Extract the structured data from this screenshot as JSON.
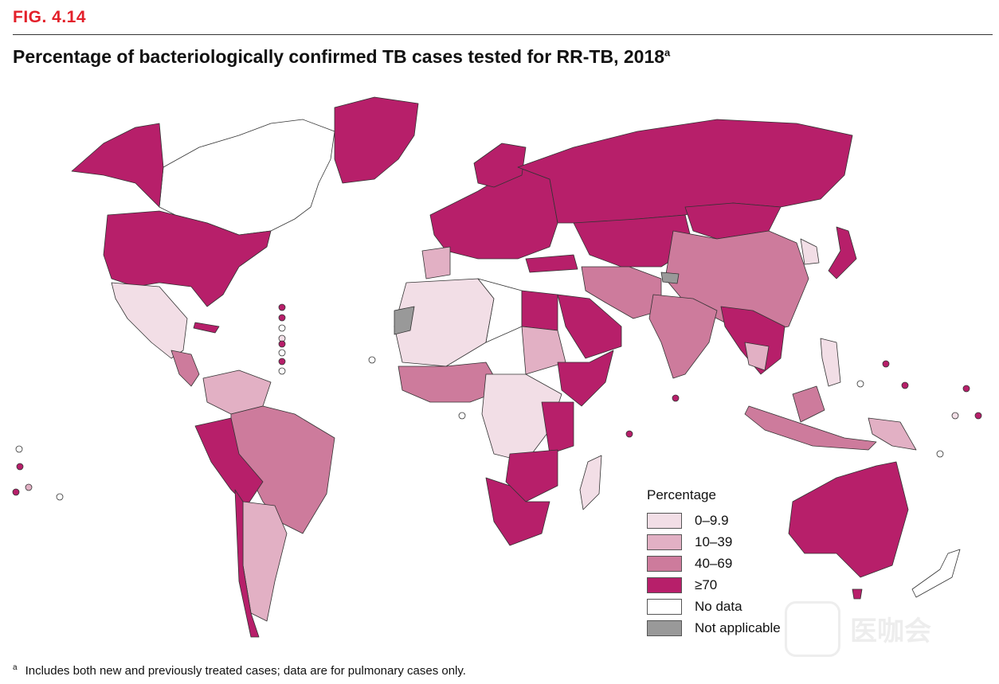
{
  "figure": {
    "label": "FIG. 4.14",
    "title": "Percentage of bacteriologically confirmed TB cases tested for RR-TB, 2018",
    "title_superscript": "a"
  },
  "legend": {
    "title": "Percentage",
    "items": [
      {
        "label": "0–9.9",
        "color": "#f2dee6"
      },
      {
        "label": "10–39",
        "color": "#e2b0c4"
      },
      {
        "label": "40–69",
        "color": "#cd7b9c"
      },
      {
        "label": "≥70",
        "color": "#b71f6a"
      },
      {
        "label": "No data",
        "color": "#ffffff"
      },
      {
        "label": "Not applicable",
        "color": "#999999"
      }
    ]
  },
  "footnote": {
    "marker": "a",
    "text": "Includes both new and previously treated cases; data are for pulmonary cases only."
  },
  "watermark": {
    "text": "医咖会"
  },
  "colors": {
    "accent": "#e3202a",
    "cat_0_9": "#f2dee6",
    "cat_10_39": "#e2b0c4",
    "cat_40_69": "#cd7b9c",
    "cat_70": "#b71f6a",
    "no_data": "#ffffff",
    "not_applicable": "#999999"
  }
}
